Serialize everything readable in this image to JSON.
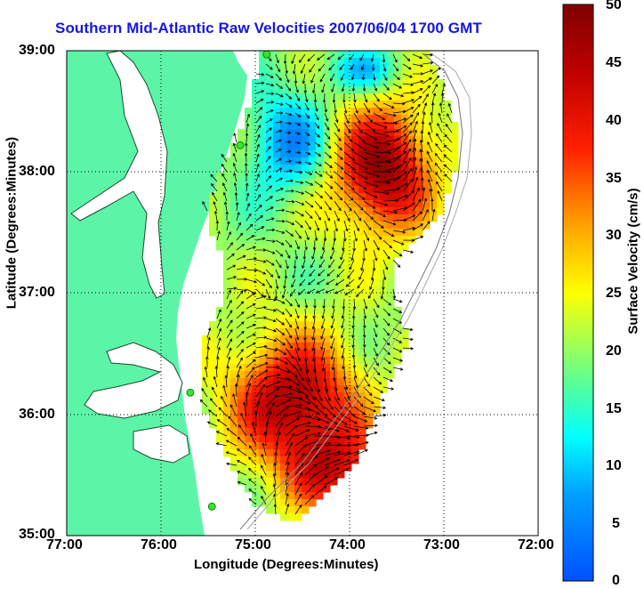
{
  "title": "Southern Mid-Atlantic Raw Velocities 2007/06/04 1700 GMT",
  "axes": {
    "xlabel": "Longitude (Degrees:Minutes)",
    "ylabel": "Latitude (Degrees:Minutes)",
    "xticks": [
      "77:00",
      "76:00",
      "75:00",
      "74:00",
      "73:00",
      "72:00"
    ],
    "yticks": [
      "39:00",
      "38:00",
      "37:00",
      "36:00",
      "35:00"
    ],
    "xlim": [
      -77,
      -72
    ],
    "ylim": [
      35,
      39
    ]
  },
  "colorbar": {
    "label": "Surface Velocity (cm/s)",
    "ticks": [
      "50",
      "45",
      "40",
      "35",
      "30",
      "25",
      "20",
      "15",
      "10",
      "5",
      "0"
    ],
    "range": [
      0,
      50
    ]
  },
  "colors": {
    "land": "#5cf5a8",
    "title": "#1515e6",
    "station": "#2ee82e"
  },
  "stations": [
    {
      "lon": -74.88,
      "lat": 38.97
    },
    {
      "lon": -75.16,
      "lat": 38.22
    },
    {
      "lon": -75.69,
      "lat": 36.18
    },
    {
      "lon": -75.46,
      "lat": 35.24
    }
  ]
}
